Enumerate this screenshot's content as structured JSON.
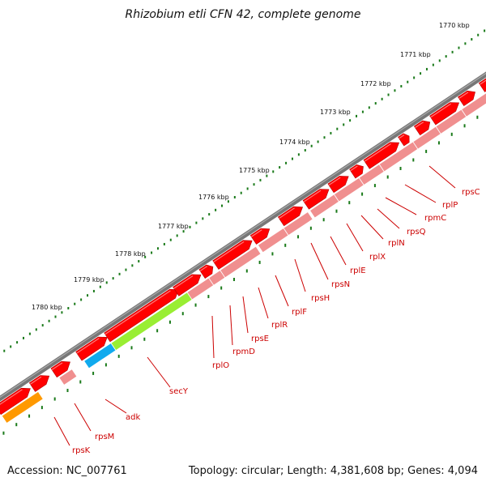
{
  "title": "Rhizobium etli CFN 42, complete genome",
  "footer": {
    "accession": "Accession: NC_007761",
    "summary": "Topology: circular; Length: 4,381,608 bp; Genes: 4,094"
  },
  "scale_ticks": [
    "1770 kbp",
    "1771 kbp",
    "1772 kbp",
    "1773 kbp",
    "1774 kbp",
    "1775 kbp",
    "1776 kbp",
    "1777 kbp",
    "1778 kbp",
    "1779 kbp",
    "1780 kbp"
  ],
  "gene_labels": [
    "rpsC",
    "rplP",
    "rpmC",
    "rpsQ",
    "rplN",
    "rplX",
    "rplE",
    "rpsN",
    "rpsH",
    "rplF",
    "rplR",
    "rpsE",
    "rpmD",
    "rplO",
    "secY",
    "adk",
    "rpsM",
    "rpsK"
  ],
  "colors": {
    "backbone": "#777777",
    "gene_forward": "#ff0000",
    "gene_reverse": "#f08f8f",
    "secY": "#99ee33",
    "adk": "#11aaee",
    "orange_gene": "#ff9900",
    "tick_dots": "#1a7a1a",
    "label_text": "#cc0000"
  }
}
